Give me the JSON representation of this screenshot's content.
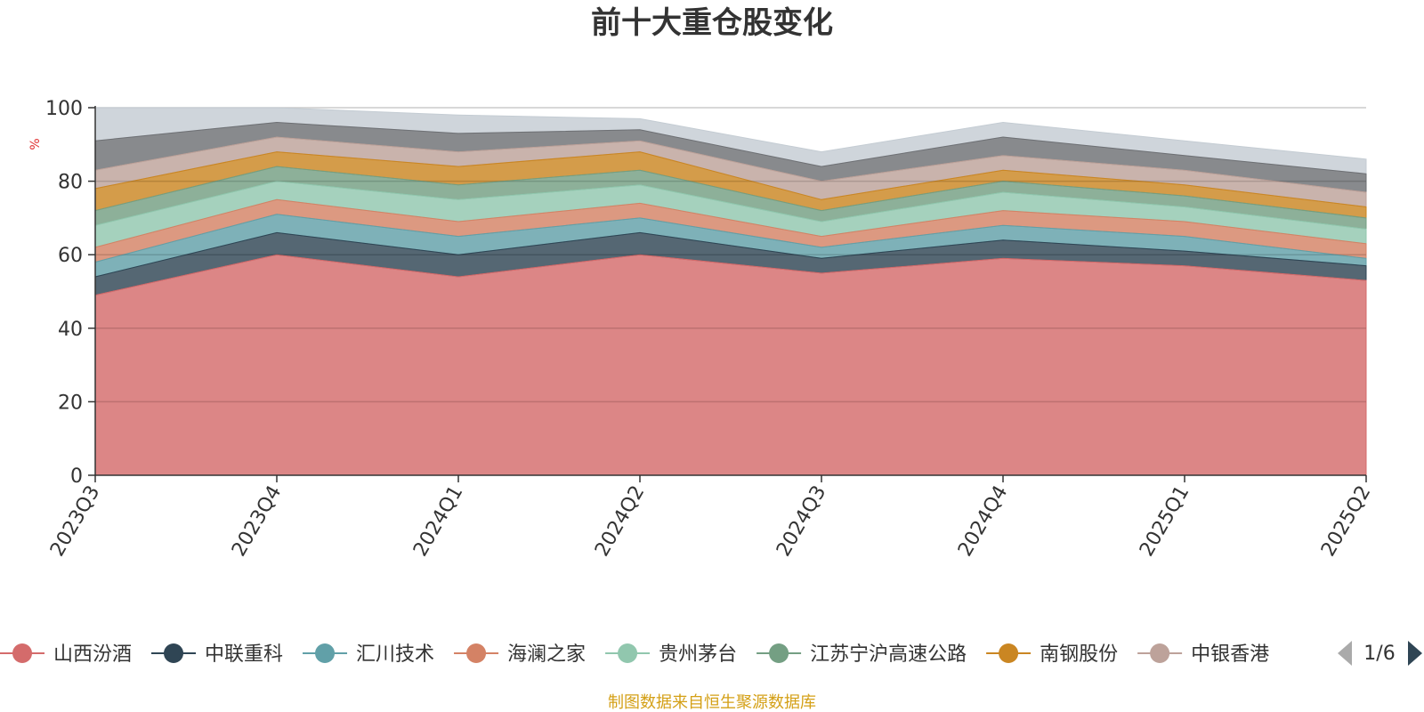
{
  "chart_data": {
    "type": "area",
    "title": "前十大重仓股变化",
    "ylabel": "%",
    "ylim": [
      0,
      100
    ],
    "y_ticks": [
      0,
      20,
      40,
      60,
      80,
      100
    ],
    "categories": [
      "2023Q3",
      "2023Q4",
      "2024Q1",
      "2024Q2",
      "2024Q3",
      "2024Q4",
      "2025Q1",
      "2025Q2"
    ],
    "grid": true,
    "stacked": true,
    "legend_position": "bottom",
    "series": [
      {
        "name": "山西汾酒",
        "color": "#d46b6b",
        "values": [
          49,
          60,
          54,
          60,
          55,
          59,
          57,
          53
        ]
      },
      {
        "name": "中联重科",
        "color": "#2f4554",
        "values": [
          5,
          6,
          6,
          6,
          4,
          5,
          4,
          4
        ]
      },
      {
        "name": "汇川技术",
        "color": "#61a0a8",
        "values": [
          4,
          5,
          5,
          4,
          3,
          4,
          4,
          2
        ]
      },
      {
        "name": "海澜之家",
        "color": "#d48265",
        "values": [
          4,
          4,
          4,
          4,
          3,
          4,
          4,
          4
        ]
      },
      {
        "name": "贵州茅台",
        "color": "#91c7ae",
        "values": [
          6,
          5,
          6,
          5,
          4,
          5,
          4,
          4
        ]
      },
      {
        "name": "江苏宁沪高速公路",
        "color": "#749f83",
        "values": [
          4,
          4,
          4,
          4,
          3,
          3,
          3,
          3
        ]
      },
      {
        "name": "南钢股份",
        "color": "#ca8622",
        "values": [
          6,
          4,
          5,
          5,
          3,
          3,
          3,
          3
        ]
      },
      {
        "name": "中银香港",
        "color": "#bda29a",
        "values": [
          5,
          4,
          4,
          3,
          5,
          4,
          4,
          4
        ]
      },
      {
        "name": "",
        "color": "#6e7074",
        "values": [
          8,
          4,
          5,
          3,
          4,
          5,
          4,
          5
        ]
      },
      {
        "name": "",
        "color": "#c4ccd3",
        "values": [
          9,
          4,
          5,
          3,
          4,
          4,
          4,
          4
        ]
      }
    ],
    "legend_page": "1/6"
  },
  "footer": {
    "source": "制图数据来自恒生聚源数据库"
  }
}
